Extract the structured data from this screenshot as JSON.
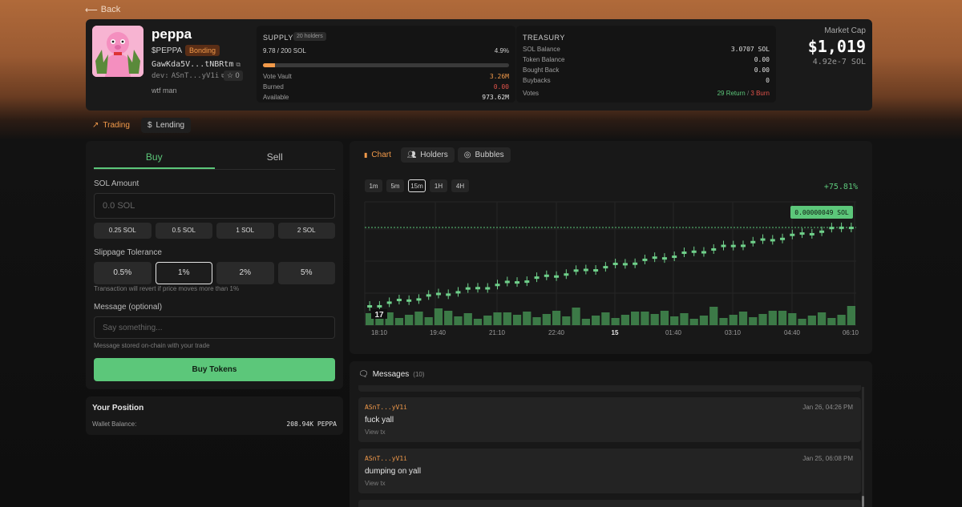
{
  "nav": {
    "back_label": "Back"
  },
  "token": {
    "name": "peppa",
    "symbol": "$PEPPA",
    "status_badge": "Bonding",
    "address": "GawKda5V...tNBRtm",
    "dev_label": "dev:",
    "dev_address": "ASnT...yV1i",
    "star_count": "0",
    "description": "wtf man"
  },
  "supply": {
    "title": "SUPPLY",
    "holders_badge": "20 holders",
    "raised": "9.78 / 200 SOL",
    "percent": "4.9%",
    "progress_fraction": 0.049,
    "rows": [
      {
        "label": "Vote Vault",
        "value": "3.26M"
      },
      {
        "label": "Burned",
        "value": "0.00"
      },
      {
        "label": "Available",
        "value": "973.62M"
      }
    ]
  },
  "treasury": {
    "title": "TREASURY",
    "rows": [
      {
        "label": "SOL Balance",
        "value": "3.0707 SOL"
      },
      {
        "label": "Token Balance",
        "value": "0.00"
      },
      {
        "label": "Bought Back",
        "value": "0.00"
      },
      {
        "label": "Buybacks",
        "value": "0"
      }
    ],
    "votes_label": "Votes",
    "votes_return": "29 Return",
    "votes_sep": "/",
    "votes_burn": "3 Burn"
  },
  "market_cap": {
    "label": "Market Cap",
    "value": "$1,019",
    "sol_value": "4.92e-7 SOL"
  },
  "page_tabs": [
    "Trading",
    "Lending"
  ],
  "trade": {
    "tab_buy": "Buy",
    "tab_sell": "Sell",
    "sol_amount_label": "SOL Amount",
    "sol_amount_placeholder": "0.0 SOL",
    "quick_amounts": [
      "0.25 SOL",
      "0.5 SOL",
      "1 SOL",
      "2 SOL"
    ],
    "slippage_label": "Slippage Tolerance",
    "slippage_options": [
      "0.5%",
      "1%",
      "2%",
      "5%"
    ],
    "slippage_selected": "1%",
    "slippage_hint": "Transaction will revert if price moves more than 1%",
    "message_label": "Message (optional)",
    "message_placeholder": "Say something...",
    "message_hint": "Message stored on-chain with your trade",
    "buy_button": "Buy Tokens"
  },
  "position": {
    "title": "Your Position",
    "wallet_label": "Wallet Balance:",
    "wallet_value": "208.94K PEPPA"
  },
  "chart_tabs": [
    "Chart",
    "Holders",
    "Bubbles"
  ],
  "timeframes": [
    "1m",
    "5m",
    "15m",
    "1H",
    "4H"
  ],
  "timeframe_selected": "15m",
  "price_change": "+75.81%",
  "chart_data": {
    "type": "candlestick",
    "price_label": "0.00000049 SOL",
    "x_tick_labels": [
      "18:10",
      "19:40",
      "21:10",
      "22:40",
      "15",
      "01:40",
      "03:10",
      "04:40",
      "06:10"
    ],
    "candles_count": 50,
    "last_price": 4.9e-07,
    "trend": "steady rise from ~0.00000028 to 0.00000049 SOL"
  },
  "messages": {
    "title": "Messages",
    "count": "(10)",
    "items": [
      {
        "user": "ASnT...yV1i",
        "time": "Jan 26, 04:26 PM",
        "text": "fuck yall",
        "link": "View tx"
      },
      {
        "user": "ASnT...yV1i",
        "time": "Jan 25, 06:08 PM",
        "text": "dumping on yall",
        "link": "View tx"
      }
    ]
  },
  "colors": {
    "accent_orange": "#f29a4a",
    "green": "#5cc77a",
    "red": "#e0524a"
  }
}
